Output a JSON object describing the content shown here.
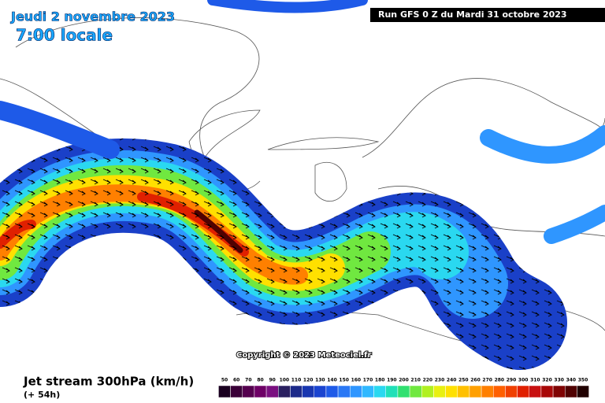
{
  "header": {
    "date": "Jeudi 2 novembre 2023",
    "time": "7:00 locale",
    "run": "Run GFS 0 Z du Mardi 31 octobre 2023"
  },
  "copyright": "Copyright © 2023 Meteociel.fr",
  "footer": {
    "title": "Jet stream 300hPa (km/h)",
    "lead": "(+ 54h)"
  },
  "scale": {
    "labels": [
      50,
      60,
      70,
      80,
      90,
      100,
      110,
      120,
      130,
      140,
      150,
      160,
      170,
      180,
      190,
      200,
      210,
      220,
      230,
      240,
      250,
      260,
      270,
      280,
      290,
      300,
      310,
      320,
      330,
      340,
      350
    ],
    "colors": [
      "#1a0020",
      "#3a0038",
      "#55004f",
      "#6e0066",
      "#7a1080",
      "#2a2060",
      "#1c2a8a",
      "#1836b0",
      "#1a44d0",
      "#1e5ae8",
      "#2a78f5",
      "#2f96ff",
      "#30b8ff",
      "#2ad8f0",
      "#20e0b8",
      "#30e070",
      "#70e840",
      "#b0f020",
      "#e8f010",
      "#ffe000",
      "#ffc000",
      "#ffa000",
      "#ff8000",
      "#ff6000",
      "#f04000",
      "#e02000",
      "#c81010",
      "#a80808",
      "#800404",
      "#500202",
      "#200000"
    ]
  }
}
